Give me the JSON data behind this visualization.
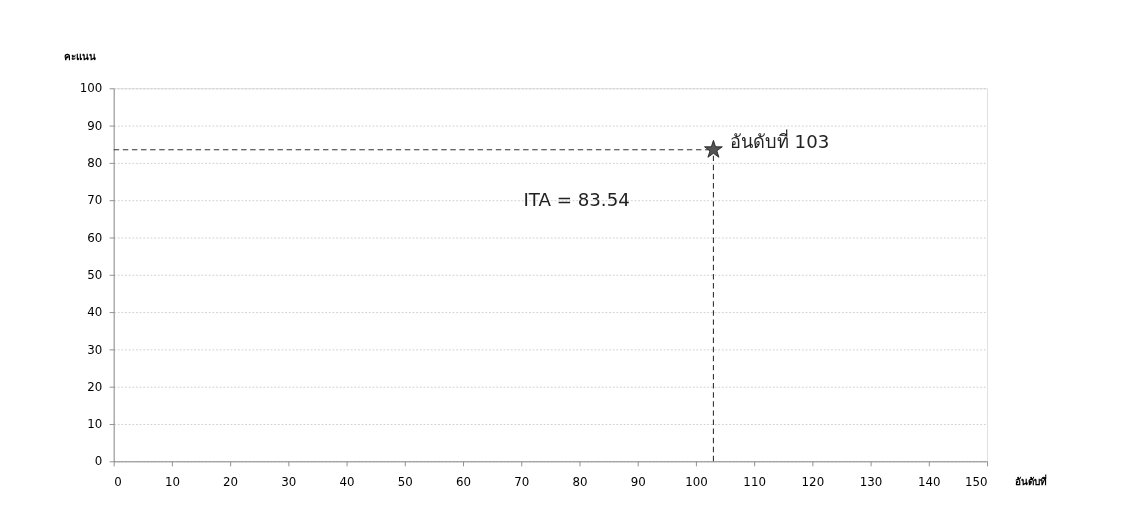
{
  "chart_data": {
    "type": "scatter",
    "xlabel": "อันดับที่",
    "ylabel": "คะแนน",
    "x": [
      103
    ],
    "series": [
      {
        "color": "#555555",
        "values": [
          83.54
        ]
      }
    ],
    "marker": "star",
    "xlim": [
      0,
      150
    ],
    "xticks": [
      0,
      10,
      20,
      30,
      40,
      50,
      60,
      70,
      80,
      90,
      100,
      110,
      120,
      130,
      140,
      150
    ],
    "ylim": [
      0,
      100
    ],
    "yticks": [
      0,
      10,
      20,
      30,
      40,
      50,
      60,
      70,
      80,
      90,
      100
    ],
    "grid": "y",
    "ref_lines": [
      {
        "axis": "y",
        "value": 83.54,
        "line_style": "dashed",
        "color": "#333333"
      },
      {
        "axis": "x",
        "value": 103,
        "line_style": "dashed",
        "color": "#333333"
      }
    ],
    "annotations": [
      {
        "text": "อันดับที่ 103",
        "x": 103,
        "y": 83.54
      },
      "ITA = 83.54"
    ]
  }
}
